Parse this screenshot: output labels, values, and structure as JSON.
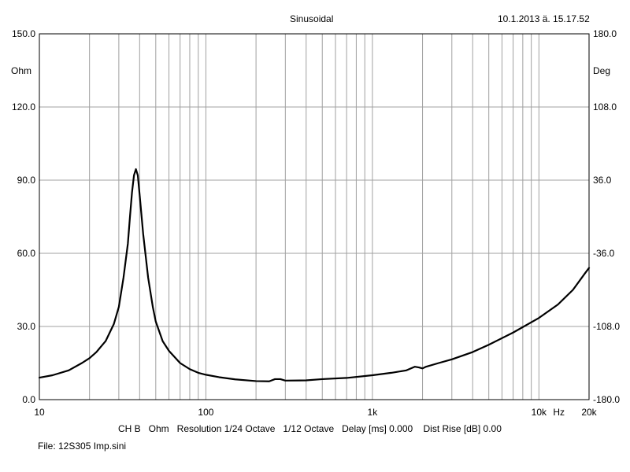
{
  "header": {
    "title": "Sinusoidal",
    "timestamp": "10.1.2013 ä. 15.17.52"
  },
  "footer": {
    "settings": "CH B   Ohm   Resolution 1/24 Octave   1/12 Octave   Delay [ms] 0.000    Dist Rise [dB] 0.00",
    "file": "File: 12S305 Imp.sini"
  },
  "chart_data": {
    "type": "line",
    "xscale": "log",
    "xlim": [
      10,
      20000
    ],
    "xunit": "Hz",
    "x_ticks": [
      {
        "value": 10,
        "label": "10"
      },
      {
        "value": 100,
        "label": "100"
      },
      {
        "value": 1000,
        "label": "1k"
      },
      {
        "value": 10000,
        "label": "10k"
      },
      {
        "value": 20000,
        "label": "20k"
      }
    ],
    "y_left": {
      "unit": "Ohm",
      "ylim": [
        0,
        150
      ],
      "ticks": [
        "0.0",
        "30.0",
        "60.0",
        "90.0",
        "120.0",
        "150.0"
      ]
    },
    "y_right": {
      "unit": "Deg",
      "ylim": [
        -180,
        180
      ],
      "ticks": [
        "-180.0",
        "-108.0",
        "-36.0",
        "36.0",
        "108.0",
        "180.0"
      ]
    },
    "grid": true,
    "colors": {
      "line": "#000000",
      "grid": "#a0a0a0",
      "frame": "#000000"
    },
    "series": [
      {
        "points": [
          [
            10,
            9
          ],
          [
            12,
            10
          ],
          [
            15,
            12
          ],
          [
            18,
            15
          ],
          [
            20,
            17
          ],
          [
            22,
            19.5
          ],
          [
            25,
            24
          ],
          [
            28,
            31
          ],
          [
            30,
            38
          ],
          [
            32,
            50
          ],
          [
            34,
            64
          ],
          [
            35,
            75
          ],
          [
            36,
            85
          ],
          [
            37,
            92
          ],
          [
            38,
            94.5
          ],
          [
            39,
            92
          ],
          [
            40,
            84
          ],
          [
            42,
            68
          ],
          [
            45,
            50
          ],
          [
            48,
            38
          ],
          [
            50,
            32
          ],
          [
            55,
            24
          ],
          [
            60,
            20
          ],
          [
            70,
            15
          ],
          [
            80,
            12.5
          ],
          [
            90,
            11
          ],
          [
            100,
            10.2
          ],
          [
            120,
            9.2
          ],
          [
            150,
            8.3
          ],
          [
            200,
            7.6
          ],
          [
            240,
            7.5
          ],
          [
            260,
            8.4
          ],
          [
            280,
            8.4
          ],
          [
            300,
            7.8
          ],
          [
            400,
            7.9
          ],
          [
            500,
            8.4
          ],
          [
            700,
            8.9
          ],
          [
            1000,
            10
          ],
          [
            1300,
            11
          ],
          [
            1600,
            12
          ],
          [
            1800,
            13.5
          ],
          [
            1900,
            13.2
          ],
          [
            2000,
            12.8
          ],
          [
            2100,
            13.5
          ],
          [
            2500,
            15
          ],
          [
            3000,
            16.5
          ],
          [
            4000,
            19.5
          ],
          [
            5000,
            22.5
          ],
          [
            7000,
            27.5
          ],
          [
            10000,
            33.5
          ],
          [
            13000,
            39
          ],
          [
            16000,
            45
          ],
          [
            19000,
            52
          ],
          [
            20000,
            54
          ]
        ]
      }
    ]
  }
}
